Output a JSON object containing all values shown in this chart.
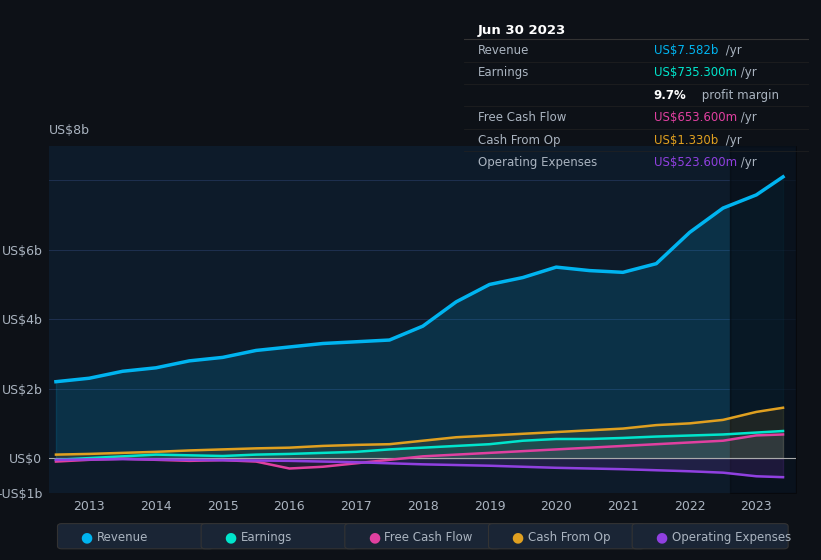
{
  "bg_color": "#0d1117",
  "plot_bg_color": "#0d1b2a",
  "grid_color": "#1e3050",
  "text_color": "#aab4c0",
  "title_color": "#ffffff",
  "years": [
    2012.5,
    2013.0,
    2013.5,
    2014.0,
    2014.5,
    2015.0,
    2015.5,
    2016.0,
    2016.5,
    2017.0,
    2017.5,
    2018.0,
    2018.5,
    2019.0,
    2019.5,
    2020.0,
    2020.5,
    2021.0,
    2021.5,
    2022.0,
    2022.5,
    2023.0,
    2023.4
  ],
  "revenue": [
    2.2,
    2.3,
    2.5,
    2.6,
    2.8,
    2.9,
    3.1,
    3.2,
    3.3,
    3.35,
    3.4,
    3.8,
    4.5,
    5.0,
    5.2,
    5.5,
    5.4,
    5.35,
    5.6,
    6.5,
    7.2,
    7.58,
    8.1
  ],
  "earnings": [
    -0.05,
    0.0,
    0.05,
    0.1,
    0.08,
    0.06,
    0.1,
    0.12,
    0.15,
    0.18,
    0.25,
    0.3,
    0.35,
    0.4,
    0.5,
    0.55,
    0.55,
    0.58,
    0.62,
    0.65,
    0.68,
    0.735,
    0.78
  ],
  "free_cash_flow": [
    -0.1,
    -0.05,
    -0.02,
    -0.05,
    -0.08,
    -0.06,
    -0.1,
    -0.3,
    -0.25,
    -0.15,
    -0.05,
    0.05,
    0.1,
    0.15,
    0.2,
    0.25,
    0.3,
    0.35,
    0.4,
    0.45,
    0.5,
    0.6536,
    0.68
  ],
  "cash_from_op": [
    0.1,
    0.12,
    0.15,
    0.18,
    0.22,
    0.25,
    0.28,
    0.3,
    0.35,
    0.38,
    0.4,
    0.5,
    0.6,
    0.65,
    0.7,
    0.75,
    0.8,
    0.85,
    0.95,
    1.0,
    1.1,
    1.33,
    1.45
  ],
  "operating_expenses": [
    -0.05,
    -0.04,
    -0.03,
    -0.04,
    -0.05,
    -0.06,
    -0.07,
    -0.08,
    -0.1,
    -0.12,
    -0.15,
    -0.18,
    -0.2,
    -0.22,
    -0.25,
    -0.28,
    -0.3,
    -0.32,
    -0.35,
    -0.38,
    -0.42,
    -0.5236,
    -0.55
  ],
  "revenue_color": "#00b4f0",
  "earnings_color": "#00e5cc",
  "free_cash_flow_color": "#e040a0",
  "cash_from_op_color": "#e0a020",
  "operating_expenses_color": "#9040e0",
  "ylim": [
    -1.0,
    9.0
  ],
  "yticks": [
    -1,
    0,
    2,
    4,
    6,
    8
  ],
  "ytick_labels": [
    "-US$1b",
    "US$0",
    "US$2b",
    "US$4b",
    "US$6b",
    "US$8b"
  ],
  "xticks": [
    2013,
    2014,
    2015,
    2016,
    2017,
    2018,
    2019,
    2020,
    2021,
    2022,
    2023
  ],
  "xlim": [
    2012.4,
    2023.6
  ],
  "legend_labels": [
    "Revenue",
    "Earnings",
    "Free Cash Flow",
    "Cash From Op",
    "Operating Expenses"
  ],
  "legend_colors": [
    "#00b4f0",
    "#00e5cc",
    "#e040a0",
    "#e0a020",
    "#9040e0"
  ],
  "info_box": {
    "title": "Jun 30 2023",
    "rows": [
      {
        "label": "Revenue",
        "value": "US$7.582b /yr",
        "value_color": "#00b4f0"
      },
      {
        "label": "Earnings",
        "value": "US$735.300m /yr",
        "value_color": "#00e5cc"
      },
      {
        "label": "",
        "value": "9.7% profit margin",
        "value_color": "#ffffff",
        "bold_part": "9.7%"
      },
      {
        "label": "Free Cash Flow",
        "value": "US$653.600m /yr",
        "value_color": "#e040a0"
      },
      {
        "label": "Cash From Op",
        "value": "US$1.330b /yr",
        "value_color": "#e0a020"
      },
      {
        "label": "Operating Expenses",
        "value": "US$523.600m /yr",
        "value_color": "#9040e0"
      }
    ]
  },
  "shaded_region_x": 2022.6,
  "fill_alpha": 0.25
}
